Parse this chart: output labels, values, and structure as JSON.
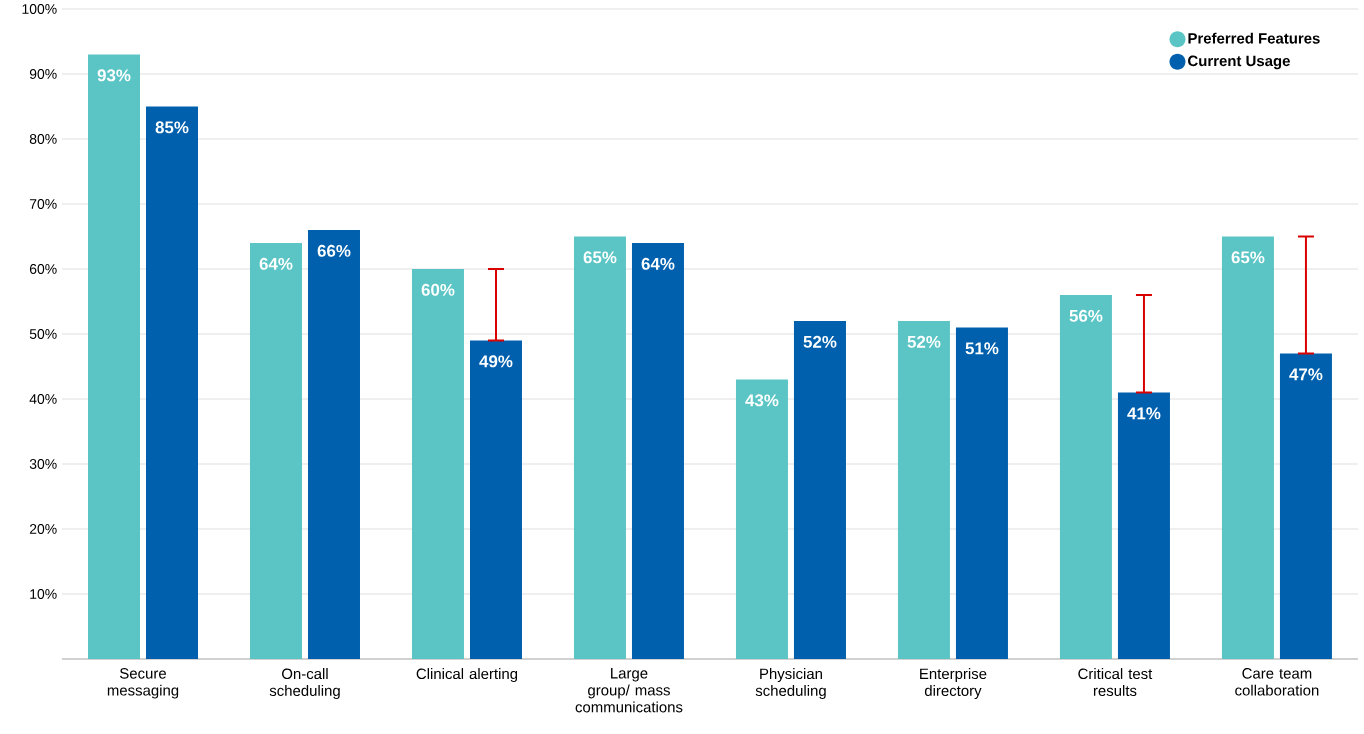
{
  "chart_data": {
    "type": "bar",
    "categories": [
      "Secure messaging",
      "On-call scheduling",
      "Clinical alerting",
      "Large group/ mass communications",
      "Physician scheduling",
      "Enterprise directory",
      "Critical test results",
      "Care team collaboration"
    ],
    "series": [
      {
        "name": "Preferred Features",
        "color": "#5bc5c6",
        "values": [
          93,
          64,
          60,
          65,
          43,
          52,
          56,
          65
        ],
        "value_labels": [
          "93%",
          "64%",
          "60%",
          "65%",
          "43%",
          "52%",
          "56%",
          "65%"
        ]
      },
      {
        "name": "Current Usage",
        "color": "#0060ae",
        "values": [
          85,
          66,
          49,
          64,
          52,
          51,
          41,
          47
        ],
        "value_labels": [
          "85%",
          "66%",
          "49%",
          "64%",
          "52%",
          "51%",
          "41%",
          "47%"
        ],
        "errors": [
          null,
          null,
          [
            49,
            60
          ],
          null,
          null,
          null,
          [
            41,
            56
          ],
          [
            47,
            65
          ]
        ]
      }
    ],
    "ylim": [
      0,
      100
    ],
    "yticks": [
      {
        "value": 0,
        "label": null
      },
      {
        "value": 10,
        "label": "10%"
      },
      {
        "value": 20,
        "label": "20%"
      },
      {
        "value": 30,
        "label": "30%"
      },
      {
        "value": 40,
        "label": "40%"
      },
      {
        "value": 50,
        "label": "50%"
      },
      {
        "value": 60,
        "label": "60%"
      },
      {
        "value": 70,
        "label": "70%"
      },
      {
        "value": 80,
        "label": "80%"
      },
      {
        "value": 90,
        "label": "90%"
      },
      {
        "value": 100,
        "label": "100%"
      }
    ],
    "grid": "y",
    "legend": "top right"
  }
}
